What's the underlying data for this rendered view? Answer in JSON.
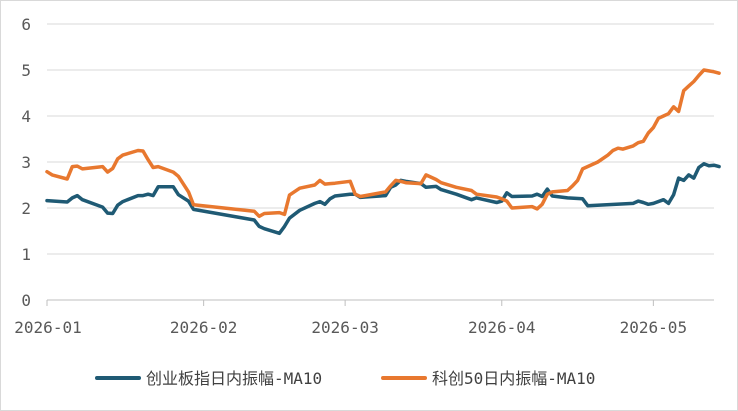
{
  "chart_data": {
    "type": "line",
    "title": "",
    "xlabel": "",
    "ylabel": "",
    "ylim": [
      0,
      6
    ],
    "yticks": [
      "0",
      "1",
      "2",
      "3",
      "4",
      "5",
      "6"
    ],
    "xticks": [
      {
        "date": "2026-01-01",
        "label": "2026-01"
      },
      {
        "date": "2026-02-01",
        "label": "2026-02"
      },
      {
        "date": "2026-03-01",
        "label": "2026-03"
      },
      {
        "date": "2026-04-01",
        "label": "2026-04"
      },
      {
        "date": "2026-05-01",
        "label": "2026-05"
      }
    ],
    "x_range": [
      "2026-01-01",
      "2026-05-13"
    ],
    "grid": "horizontal",
    "legend_position": "bottom",
    "series": [
      {
        "name": "创业板指日内振幅-MA10",
        "color": "#1F5A74",
        "points": [
          [
            "2026-01-01",
            2.16
          ],
          [
            "2026-01-05",
            2.13
          ],
          [
            "2026-01-06",
            2.22
          ],
          [
            "2026-01-07",
            2.27
          ],
          [
            "2026-01-08",
            2.18
          ],
          [
            "2026-01-12",
            2.02
          ],
          [
            "2026-01-13",
            1.89
          ],
          [
            "2026-01-14",
            1.88
          ],
          [
            "2026-01-15",
            2.06
          ],
          [
            "2026-01-16",
            2.14
          ],
          [
            "2026-01-19",
            2.27
          ],
          [
            "2026-01-20",
            2.27
          ],
          [
            "2026-01-21",
            2.3
          ],
          [
            "2026-01-22",
            2.27
          ],
          [
            "2026-01-23",
            2.46
          ],
          [
            "2026-01-26",
            2.46
          ],
          [
            "2026-01-27",
            2.29
          ],
          [
            "2026-01-29",
            2.15
          ],
          [
            "2026-01-30",
            1.97
          ],
          [
            "2026-02-11",
            1.74
          ],
          [
            "2026-02-12",
            1.6
          ],
          [
            "2026-02-13",
            1.55
          ],
          [
            "2026-02-16",
            1.45
          ],
          [
            "2026-02-17",
            1.6
          ],
          [
            "2026-02-18",
            1.78
          ],
          [
            "2026-02-20",
            1.95
          ],
          [
            "2026-02-23",
            2.1
          ],
          [
            "2026-02-24",
            2.14
          ],
          [
            "2026-02-25",
            2.08
          ],
          [
            "2026-02-26",
            2.2
          ],
          [
            "2026-02-27",
            2.26
          ],
          [
            "2026-03-02",
            2.3
          ],
          [
            "2026-03-03",
            2.3
          ],
          [
            "2026-03-04",
            2.23
          ],
          [
            "2026-03-05",
            2.24
          ],
          [
            "2026-03-09",
            2.27
          ],
          [
            "2026-03-10",
            2.45
          ],
          [
            "2026-03-11",
            2.5
          ],
          [
            "2026-03-12",
            2.6
          ],
          [
            "2026-03-13",
            2.58
          ],
          [
            "2026-03-16",
            2.53
          ],
          [
            "2026-03-17",
            2.45
          ],
          [
            "2026-03-19",
            2.47
          ],
          [
            "2026-03-20",
            2.4
          ],
          [
            "2026-03-23",
            2.3
          ],
          [
            "2026-03-26",
            2.18
          ],
          [
            "2026-03-27",
            2.22
          ],
          [
            "2026-03-31",
            2.12
          ],
          [
            "2026-04-01",
            2.15
          ],
          [
            "2026-04-02",
            2.33
          ],
          [
            "2026-04-03",
            2.25
          ],
          [
            "2026-04-07",
            2.26
          ],
          [
            "2026-04-08",
            2.3
          ],
          [
            "2026-04-09",
            2.25
          ],
          [
            "2026-04-10",
            2.41
          ],
          [
            "2026-04-11",
            2.26
          ],
          [
            "2026-04-14",
            2.22
          ],
          [
            "2026-04-17",
            2.2
          ],
          [
            "2026-04-18",
            2.05
          ],
          [
            "2026-04-27",
            2.1
          ],
          [
            "2026-04-28",
            2.15
          ],
          [
            "2026-04-29",
            2.12
          ],
          [
            "2026-04-30",
            2.08
          ],
          [
            "2026-05-01",
            2.1
          ],
          [
            "2026-05-03",
            2.18
          ],
          [
            "2026-05-04",
            2.1
          ],
          [
            "2026-05-05",
            2.29
          ],
          [
            "2026-05-06",
            2.65
          ],
          [
            "2026-05-07",
            2.6
          ],
          [
            "2026-05-08",
            2.72
          ],
          [
            "2026-05-09",
            2.65
          ],
          [
            "2026-05-10",
            2.88
          ],
          [
            "2026-05-11",
            2.96
          ],
          [
            "2026-05-12",
            2.92
          ],
          [
            "2026-05-13",
            2.93
          ],
          [
            "2026-05-14",
            2.9
          ]
        ]
      },
      {
        "name": "科创50日内振幅-MA10",
        "color": "#E8782F",
        "points": [
          [
            "2026-01-01",
            2.79
          ],
          [
            "2026-01-02",
            2.72
          ],
          [
            "2026-01-05",
            2.63
          ],
          [
            "2026-01-06",
            2.9
          ],
          [
            "2026-01-07",
            2.91
          ],
          [
            "2026-01-08",
            2.85
          ],
          [
            "2026-01-12",
            2.9
          ],
          [
            "2026-01-13",
            2.78
          ],
          [
            "2026-01-14",
            2.86
          ],
          [
            "2026-01-15",
            3.07
          ],
          [
            "2026-01-16",
            3.15
          ],
          [
            "2026-01-19",
            3.25
          ],
          [
            "2026-01-20",
            3.24
          ],
          [
            "2026-01-21",
            3.05
          ],
          [
            "2026-01-22",
            2.88
          ],
          [
            "2026-01-23",
            2.9
          ],
          [
            "2026-01-26",
            2.78
          ],
          [
            "2026-01-27",
            2.69
          ],
          [
            "2026-01-29",
            2.35
          ],
          [
            "2026-01-30",
            2.07
          ],
          [
            "2026-02-11",
            1.93
          ],
          [
            "2026-02-12",
            1.82
          ],
          [
            "2026-02-13",
            1.88
          ],
          [
            "2026-02-16",
            1.9
          ],
          [
            "2026-02-17",
            1.86
          ],
          [
            "2026-02-18",
            2.28
          ],
          [
            "2026-02-20",
            2.43
          ],
          [
            "2026-02-23",
            2.5
          ],
          [
            "2026-02-24",
            2.6
          ],
          [
            "2026-02-25",
            2.52
          ],
          [
            "2026-02-26",
            2.53
          ],
          [
            "2026-02-27",
            2.54
          ],
          [
            "2026-03-02",
            2.58
          ],
          [
            "2026-03-03",
            2.3
          ],
          [
            "2026-03-04",
            2.25
          ],
          [
            "2026-03-05",
            2.27
          ],
          [
            "2026-03-09",
            2.35
          ],
          [
            "2026-03-10",
            2.48
          ],
          [
            "2026-03-11",
            2.6
          ],
          [
            "2026-03-12",
            2.58
          ],
          [
            "2026-03-13",
            2.55
          ],
          [
            "2026-03-16",
            2.53
          ],
          [
            "2026-03-17",
            2.72
          ],
          [
            "2026-03-19",
            2.62
          ],
          [
            "2026-03-20",
            2.55
          ],
          [
            "2026-03-23",
            2.45
          ],
          [
            "2026-03-26",
            2.38
          ],
          [
            "2026-03-27",
            2.3
          ],
          [
            "2026-03-31",
            2.24
          ],
          [
            "2026-04-01",
            2.2
          ],
          [
            "2026-04-02",
            2.15
          ],
          [
            "2026-04-03",
            2.0
          ],
          [
            "2026-04-07",
            2.03
          ],
          [
            "2026-04-08",
            1.98
          ],
          [
            "2026-04-09",
            2.08
          ],
          [
            "2026-04-10",
            2.3
          ],
          [
            "2026-04-11",
            2.35
          ],
          [
            "2026-04-14",
            2.38
          ],
          [
            "2026-04-15",
            2.48
          ],
          [
            "2026-04-16",
            2.6
          ],
          [
            "2026-04-17",
            2.85
          ],
          [
            "2026-04-20",
            3.0
          ],
          [
            "2026-04-22",
            3.15
          ],
          [
            "2026-04-23",
            3.25
          ],
          [
            "2026-04-24",
            3.3
          ],
          [
            "2026-04-25",
            3.28
          ],
          [
            "2026-04-27",
            3.35
          ],
          [
            "2026-04-28",
            3.42
          ],
          [
            "2026-04-29",
            3.45
          ],
          [
            "2026-04-30",
            3.63
          ],
          [
            "2026-05-01",
            3.75
          ],
          [
            "2026-05-02",
            3.95
          ],
          [
            "2026-05-03",
            4.0
          ],
          [
            "2026-05-04",
            4.05
          ],
          [
            "2026-05-05",
            4.2
          ],
          [
            "2026-05-06",
            4.1
          ],
          [
            "2026-05-07",
            4.55
          ],
          [
            "2026-05-08",
            4.65
          ],
          [
            "2026-05-09",
            4.75
          ],
          [
            "2026-05-10",
            4.88
          ],
          [
            "2026-05-11",
            5.0
          ],
          [
            "2026-05-12",
            4.98
          ],
          [
            "2026-05-13",
            4.96
          ],
          [
            "2026-05-14",
            4.93
          ]
        ]
      }
    ]
  }
}
